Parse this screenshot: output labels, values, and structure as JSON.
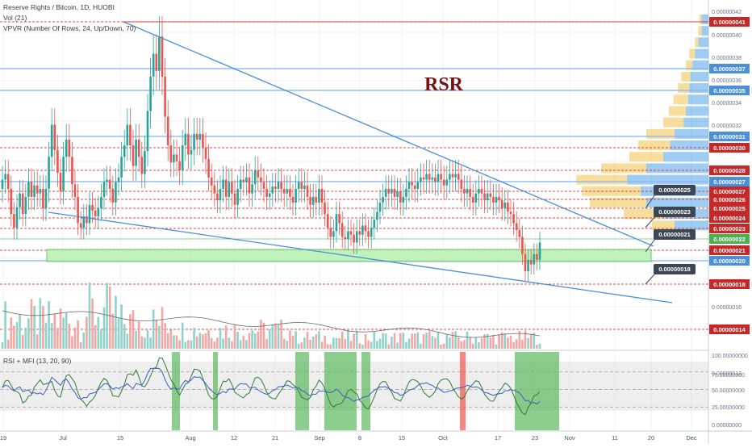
{
  "header": {
    "symbol_line": "Reserve Rights / Bitcoin, 1D, HUOBI",
    "volume_line": "Vol (21)",
    "vpvr_line": "VPVR (Number Of Rows, 24, Up/Down, 70)",
    "watermark": "RSR"
  },
  "colors": {
    "up": "#26a69a",
    "down": "#ef5350",
    "trendline": "#4a90d9",
    "support_box": "#b7f0b0",
    "red_label": "#c62828",
    "blue_label": "#4a90d9",
    "callout": "#3d4654",
    "vpvr_up": "#4ea3e8",
    "vpvr_down": "#f3c34a",
    "mfi_highlight": "#5cb85c",
    "rsi_highlight": "#ef5350"
  },
  "chart_data": [
    {
      "type": "candlestick",
      "title": "Reserve Rights / Bitcoin, 1D, HUOBI",
      "y_scale": "price",
      "ylim": [
        1.2e-07,
        4.3e-07
      ],
      "x_ticks": [
        "19",
        "Jul",
        "15",
        "Aug",
        "12",
        "21",
        "Sep",
        "8",
        "15",
        "Oct",
        "17",
        "23",
        "Nov",
        "11",
        "20",
        "Dec"
      ],
      "price_axis_ticks": [
        "0.00000042",
        "0.00000040",
        "0.00000038",
        "0.00000036",
        "0.00000034",
        "0.00000032",
        "0.00000016",
        "0.00000012"
      ],
      "horizontal_levels": [
        {
          "label": "0.00000041",
          "style": "red"
        },
        {
          "label": "0.00000037",
          "style": "blue"
        },
        {
          "label": "0.00000035",
          "style": "blue"
        },
        {
          "label": "0.00000031",
          "style": "blue"
        },
        {
          "label": "0.00000030",
          "style": "red"
        },
        {
          "label": "0.00000028",
          "style": "red"
        },
        {
          "label": "0.00000027",
          "style": "blue"
        },
        {
          "label": "0.00000027",
          "style": "red"
        },
        {
          "label": "0.00000026",
          "style": "red"
        },
        {
          "label": "0.00000025",
          "style": "red"
        },
        {
          "label": "0.00000024",
          "style": "red"
        },
        {
          "label": "0.00000023",
          "style": "red"
        },
        {
          "label": "0.00000022",
          "style": "green"
        },
        {
          "label": "0.00000021",
          "style": "red"
        },
        {
          "label": "0.00000020",
          "style": "blue"
        },
        {
          "label": "0.00000018",
          "style": "red"
        },
        {
          "label": "0.00000014",
          "style": "red"
        }
      ],
      "callouts": [
        "0.00000025",
        "0.00000023",
        "0.00000021",
        "0.00000018"
      ],
      "annotations": [
        "RSR"
      ],
      "closes": [
        2.7e-07,
        2.75e-07,
        2.62e-07,
        2.4e-07,
        2.28e-07,
        2.46e-07,
        2.58e-07,
        2.4e-07,
        2.55e-07,
        2.68e-07,
        2.55e-07,
        2.65e-07,
        2.58e-07,
        2.62e-07,
        2.45e-07,
        2.62e-07,
        2.9e-07,
        3.18e-07,
        2.96e-07,
        2.76e-07,
        2.6e-07,
        2.9e-07,
        3.05e-07,
        2.9e-07,
        2.66e-07,
        2.55e-07,
        2.32e-07,
        2.28e-07,
        2.38e-07,
        2.32e-07,
        2.48e-07,
        2.43e-07,
        2.38e-07,
        2.45e-07,
        2.55e-07,
        2.68e-07,
        2.7e-07,
        2.62e-07,
        2.5e-07,
        2.68e-07,
        2.72e-07,
        2.9e-07,
        3e-07,
        3.18e-07,
        3e-07,
        2.82e-07,
        3.05e-07,
        2.9e-07,
        2.75e-07,
        2.95e-07,
        3.3e-07,
        3.6e-07,
        3.8e-07,
        3.65e-07,
        3.95e-07,
        3.6e-07,
        3.25e-07,
        3e-07,
        2.85e-07,
        2.92e-07,
        2.86e-07,
        2.78e-07,
        3e-07,
        3.1e-07,
        2.92e-07,
        2.96e-07,
        3.1e-07,
        3.05e-07,
        3.1e-07,
        2.98e-07,
        2.88e-07,
        2.72e-07,
        2.65e-07,
        2.58e-07,
        2.52e-07,
        2.62e-07,
        2.7e-07,
        2.55e-07,
        2.68e-07,
        2.58e-07,
        2.48e-07,
        2.62e-07,
        2.7e-07,
        2.68e-07,
        2.72e-07,
        2.58e-07,
        2.66e-07,
        2.78e-07,
        2.72e-07,
        2.68e-07,
        2.62e-07,
        2.55e-07,
        2.58e-07,
        2.64e-07,
        2.62e-07,
        2.68e-07,
        2.62e-07,
        2.58e-07,
        2.62e-07,
        2.55e-07,
        2.5e-07,
        2.62e-07,
        2.68e-07,
        2.62e-07,
        2.65e-07,
        2.55e-07,
        2.48e-07,
        2.55e-07,
        2.5e-07,
        2.62e-07,
        2.5e-07,
        2.4e-07,
        2.28e-07,
        2.2e-07,
        2.25e-07,
        2.4e-07,
        2.32e-07,
        2.2e-07,
        2.18e-07,
        2.25e-07,
        2.22e-07,
        2.15e-07,
        2.25e-07,
        2.22e-07,
        2.3e-07,
        2.25e-07,
        2.2e-07,
        2.28e-07,
        2.35e-07,
        2.42e-07,
        2.5e-07,
        2.55e-07,
        2.62e-07,
        2.58e-07,
        2.62e-07,
        2.55e-07,
        2.6e-07,
        2.5e-07,
        2.55e-07,
        2.62e-07,
        2.68e-07,
        2.65e-07,
        2.62e-07,
        2.68e-07,
        2.72e-07,
        2.7e-07,
        2.75e-07,
        2.7e-07,
        2.72e-07,
        2.68e-07,
        2.75e-07,
        2.7e-07,
        2.65e-07,
        2.7e-07,
        2.75e-07,
        2.72e-07,
        2.75e-07,
        2.7e-07,
        2.62e-07,
        2.58e-07,
        2.62e-07,
        2.55e-07,
        2.5e-07,
        2.58e-07,
        2.62e-07,
        2.58e-07,
        2.52e-07,
        2.58e-07,
        2.55e-07,
        2.5e-07,
        2.55e-07,
        2.52e-07,
        2.45e-07,
        2.5e-07,
        2.42e-07,
        2.4e-07,
        2.32e-07,
        2.26e-07,
        2.2e-07,
        2.05e-07,
        1.9e-07,
        2e-07,
        1.96e-07,
        2.05e-07,
        2e-07,
        2.15e-07
      ]
    },
    {
      "type": "bar",
      "title": "Vol (21)",
      "note": "volume histogram with moving average, relative heights"
    },
    {
      "type": "line",
      "title": "RSI + MFI (13, 20, 90)",
      "y_ticks": [
        "100.00000000",
        "75.00000000",
        "50.00000000",
        "25.00000000",
        "0.00000000"
      ],
      "ylim": [
        0,
        100
      ],
      "bands": {
        "upper": 90,
        "lower": 20
      },
      "x_ticks": [
        "19",
        "Jul",
        "15",
        "Aug",
        "12",
        "21",
        "Sep",
        "8",
        "15",
        "Oct",
        "17",
        "23",
        "Nov",
        "11",
        "20",
        "Dec"
      ]
    }
  ]
}
